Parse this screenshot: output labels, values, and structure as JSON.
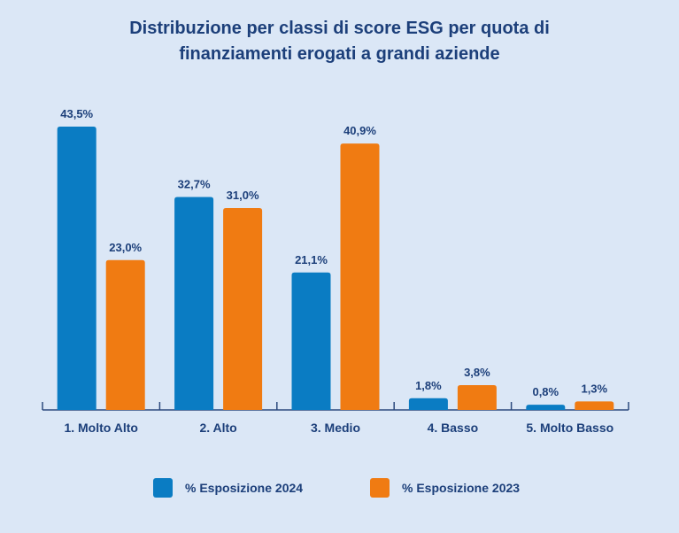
{
  "chart_data": {
    "type": "bar",
    "title_lines": [
      "Distribuzione per classi di score ESG per quota di",
      "finanziamenti erogati a grandi aziende"
    ],
    "xlabel": "",
    "ylabel": "",
    "ylim": [
      0,
      45
    ],
    "grid": false,
    "legend_position": "bottom",
    "categories": [
      "1. Molto Alto",
      "2. Alto",
      "3. Medio",
      "4. Basso",
      "5. Molto Basso"
    ],
    "series": [
      {
        "name": "% Esposizione 2024",
        "color": "#0a7cc3",
        "values": [
          43.5,
          32.7,
          21.1,
          1.8,
          0.8
        ],
        "labels": [
          "43,5%",
          "32,7%",
          "21,1%",
          "1,8%",
          "0,8%"
        ]
      },
      {
        "name": "% Esposizione 2023",
        "color": "#f07b12",
        "values": [
          23.0,
          31.0,
          40.9,
          3.8,
          1.3
        ],
        "labels": [
          "23,0%",
          "31,0%",
          "40,9%",
          "3,8%",
          "1,3%"
        ]
      }
    ]
  },
  "colors": {
    "background": "#dbe7f6",
    "text": "#1c3f7a",
    "axis": "#2c4a7e"
  }
}
